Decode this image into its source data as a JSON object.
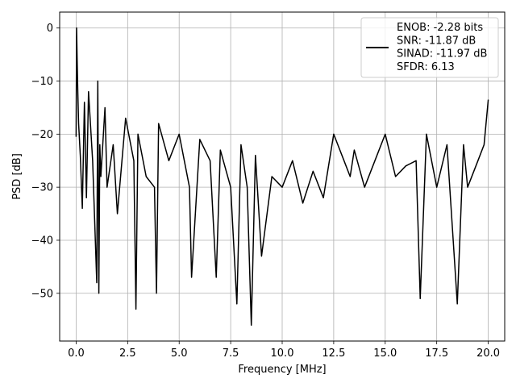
{
  "chart_data": {
    "type": "line",
    "xlabel": "Frequency [MHz]",
    "ylabel": "PSD [dB]",
    "xlim": [
      -0.8,
      20.8
    ],
    "ylim": [
      -59,
      3
    ],
    "x_ticks": [
      0,
      2.5,
      5,
      7.5,
      10,
      12.5,
      15,
      17.5,
      20
    ],
    "x_tick_labels": [
      "0.0",
      "2.5",
      "5.0",
      "7.5",
      "10.0",
      "12.5",
      "15.0",
      "17.5",
      "20.0"
    ],
    "y_ticks": [
      0,
      -10,
      -20,
      -30,
      -40,
      -50
    ],
    "y_tick_labels": [
      "0",
      "−10",
      "−20",
      "−30",
      "−40",
      "−50"
    ],
    "grid": true,
    "legend_position": "top-right",
    "legend_lines": [
      "ENOB: -2.28 bits",
      "SNR: -11.87 dB",
      "SINAD: -11.97 dB",
      "SFDR: 6.13"
    ],
    "series": [
      {
        "color": "#000000",
        "x": [
          0,
          0.02,
          0.05,
          0.08,
          0.12,
          0.2,
          0.3,
          0.4,
          0.5,
          0.6,
          0.8,
          1.0,
          1.05,
          1.1,
          1.15,
          1.2,
          1.4,
          1.5,
          1.8,
          2.0,
          2.4,
          2.8,
          2.9,
          3.0,
          3.4,
          3.8,
          3.9,
          4.0,
          4.5,
          5.0,
          5.5,
          5.6,
          6.0,
          6.5,
          6.8,
          7.0,
          7.5,
          7.8,
          8.0,
          8.3,
          8.5,
          8.7,
          9.0,
          9.5,
          10.0,
          10.5,
          11.0,
          11.5,
          12.0,
          12.5,
          13.0,
          13.3,
          13.5,
          14.0,
          14.5,
          15.0,
          15.5,
          16.0,
          16.5,
          16.7,
          17.0,
          17.5,
          18.0,
          18.3,
          18.5,
          18.8,
          19.0,
          19.5,
          19.8,
          20.0
        ],
        "values": [
          -20.5,
          0,
          -6,
          -12,
          -18,
          -24,
          -34,
          -14,
          -32,
          -12,
          -25,
          -48,
          -10,
          -50,
          -22,
          -28,
          -15,
          -30,
          -22,
          -35,
          -17,
          -25,
          -53,
          -20,
          -28,
          -30,
          -50,
          -18,
          -25,
          -20,
          -30,
          -47,
          -21,
          -25,
          -47,
          -23,
          -30,
          -52,
          -22,
          -30,
          -56,
          -24,
          -43,
          -28,
          -30,
          -25,
          -33,
          -27,
          -32,
          -20,
          -25,
          -28,
          -23,
          -30,
          -25,
          -20,
          -28,
          -26,
          -25,
          -51,
          -20,
          -30,
          -22,
          -40,
          -52,
          -22,
          -30,
          -25,
          -22,
          -13.5
        ]
      }
    ]
  }
}
